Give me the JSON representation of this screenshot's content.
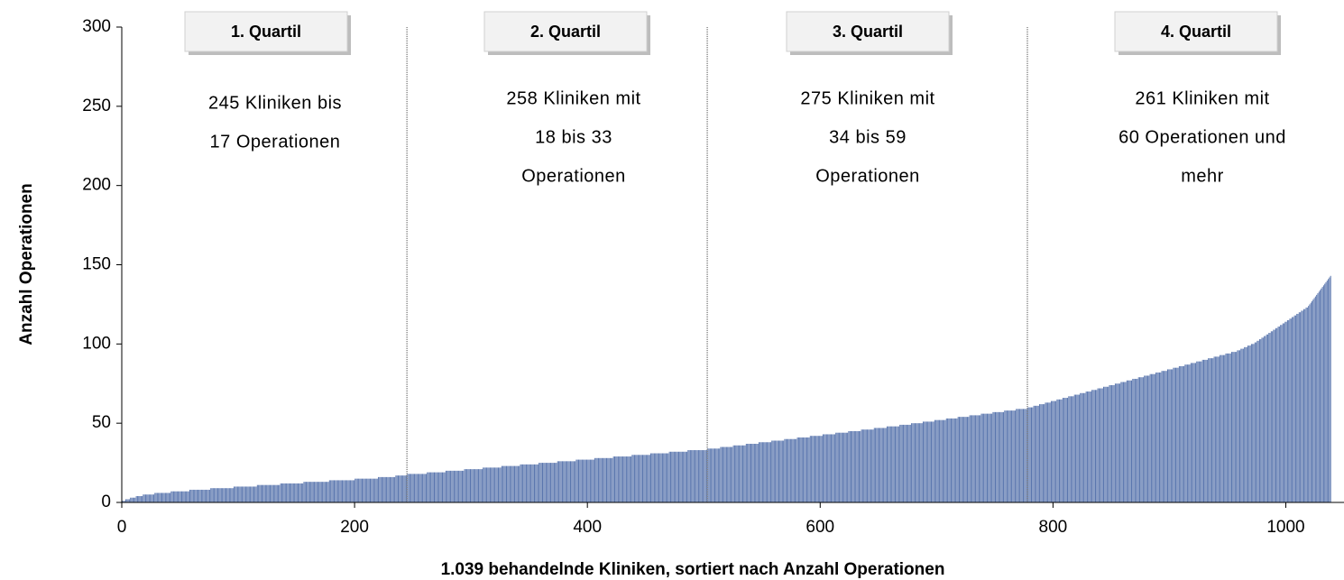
{
  "chart_data": {
    "type": "bar",
    "xlabel": "1.039 behandelnde Kliniken, sortiert nach Anzahl Operationen",
    "ylabel": "Anzahl Operationen",
    "color": "#5a76ae",
    "xlim": [
      0,
      1050
    ],
    "xticks": [
      0,
      200,
      400,
      600,
      800,
      1000
    ],
    "ylim": [
      0,
      300
    ],
    "yticks": [
      0,
      50,
      100,
      150,
      200,
      250,
      300
    ],
    "quartile_boundaries": [
      245,
      503,
      778
    ],
    "annotations": [
      {
        "label": "1. Quartil",
        "text": [
          "245 Kliniken bis",
          "17 Operationen"
        ]
      },
      {
        "label": "2. Quartil",
        "text": [
          "258 Kliniken mit",
          "18 bis 33",
          "Operationen"
        ]
      },
      {
        "label": "3. Quartil",
        "text": [
          "275 Kliniken mit",
          "34 bis 59",
          "Operationen"
        ]
      },
      {
        "label": "4. Quartil",
        "text": [
          "261 Kliniken mit",
          "60 Operationen und",
          "mehr"
        ]
      }
    ],
    "values": [
      1,
      1,
      1,
      2,
      2,
      2,
      2,
      3,
      3,
      3,
      3,
      3,
      4,
      4,
      4,
      4,
      4,
      4,
      5,
      5,
      5,
      5,
      5,
      5,
      5,
      5,
      5,
      5,
      6,
      6,
      6,
      6,
      6,
      6,
      6,
      6,
      6,
      6,
      6,
      6,
      6,
      6,
      7,
      7,
      7,
      7,
      7,
      7,
      7,
      7,
      7,
      7,
      7,
      7,
      7,
      7,
      7,
      7,
      8,
      8,
      8,
      8,
      8,
      8,
      8,
      8,
      8,
      8,
      8,
      8,
      8,
      8,
      8,
      8,
      8,
      8,
      9,
      9,
      9,
      9,
      9,
      9,
      9,
      9,
      9,
      9,
      9,
      9,
      9,
      9,
      9,
      9,
      9,
      9,
      9,
      9,
      10,
      10,
      10,
      10,
      10,
      10,
      10,
      10,
      10,
      10,
      10,
      10,
      10,
      10,
      10,
      10,
      10,
      10,
      10,
      10,
      11,
      11,
      11,
      11,
      11,
      11,
      11,
      11,
      11,
      11,
      11,
      11,
      11,
      11,
      11,
      11,
      11,
      11,
      11,
      11,
      12,
      12,
      12,
      12,
      12,
      12,
      12,
      12,
      12,
      12,
      12,
      12,
      12,
      12,
      12,
      12,
      12,
      12,
      12,
      12,
      13,
      13,
      13,
      13,
      13,
      13,
      13,
      13,
      13,
      13,
      13,
      13,
      13,
      13,
      13,
      13,
      13,
      13,
      13,
      13,
      13,
      13,
      14,
      14,
      14,
      14,
      14,
      14,
      14,
      14,
      14,
      14,
      14,
      14,
      14,
      14,
      14,
      14,
      14,
      14,
      14,
      14,
      14,
      14,
      15,
      15,
      15,
      15,
      15,
      15,
      15,
      15,
      15,
      15,
      15,
      15,
      15,
      15,
      15,
      15,
      15,
      15,
      15,
      15,
      16,
      16,
      16,
      16,
      16,
      16,
      16,
      16,
      16,
      16,
      16,
      16,
      16,
      16,
      16,
      17,
      17,
      17,
      17,
      17,
      17,
      17,
      17,
      17,
      17,
      18,
      18,
      18,
      18,
      18,
      18,
      18,
      18,
      18,
      18,
      18,
      18,
      18,
      18,
      18,
      18,
      18,
      19,
      19,
      19,
      19,
      19,
      19,
      19,
      19,
      19,
      19,
      19,
      19,
      19,
      19,
      19,
      19,
      20,
      20,
      20,
      20,
      20,
      20,
      20,
      20,
      20,
      20,
      20,
      20,
      20,
      20,
      20,
      20,
      21,
      21,
      21,
      21,
      21,
      21,
      21,
      21,
      21,
      21,
      21,
      21,
      21,
      21,
      21,
      21,
      22,
      22,
      22,
      22,
      22,
      22,
      22,
      22,
      22,
      22,
      22,
      22,
      22,
      22,
      22,
      22,
      23,
      23,
      23,
      23,
      23,
      23,
      23,
      23,
      23,
      23,
      23,
      23,
      23,
      23,
      23,
      23,
      24,
      24,
      24,
      24,
      24,
      24,
      24,
      24,
      24,
      24,
      24,
      24,
      24,
      24,
      24,
      24,
      25,
      25,
      25,
      25,
      25,
      25,
      25,
      25,
      25,
      25,
      25,
      25,
      25,
      25,
      25,
      25,
      26,
      26,
      26,
      26,
      26,
      26,
      26,
      26,
      26,
      26,
      26,
      26,
      26,
      26,
      26,
      26,
      27,
      27,
      27,
      27,
      27,
      27,
      27,
      27,
      27,
      27,
      27,
      27,
      27,
      27,
      27,
      27,
      28,
      28,
      28,
      28,
      28,
      28,
      28,
      28,
      28,
      28,
      28,
      28,
      28,
      28,
      28,
      28,
      29,
      29,
      29,
      29,
      29,
      29,
      29,
      29,
      29,
      29,
      29,
      29,
      29,
      29,
      29,
      29,
      30,
      30,
      30,
      30,
      30,
      30,
      30,
      30,
      30,
      30,
      30,
      30,
      30,
      30,
      30,
      30,
      31,
      31,
      31,
      31,
      31,
      31,
      31,
      31,
      31,
      31,
      31,
      31,
      31,
      31,
      31,
      31,
      32,
      32,
      32,
      32,
      32,
      32,
      32,
      32,
      32,
      32,
      32,
      32,
      32,
      32,
      32,
      32,
      33,
      33,
      33,
      33,
      33,
      33,
      33,
      33,
      33,
      33,
      33,
      33,
      33,
      33,
      33,
      33,
      33,
      34,
      34,
      34,
      34,
      34,
      34,
      34,
      34,
      34,
      34,
      34,
      35,
      35,
      35,
      35,
      35,
      35,
      35,
      35,
      35,
      35,
      35,
      36,
      36,
      36,
      36,
      36,
      36,
      36,
      36,
      36,
      36,
      36,
      37,
      37,
      37,
      37,
      37,
      37,
      37,
      37,
      37,
      37,
      37,
      38,
      38,
      38,
      38,
      38,
      38,
      38,
      38,
      38,
      38,
      38,
      39,
      39,
      39,
      39,
      39,
      39,
      39,
      39,
      39,
      39,
      39,
      40,
      40,
      40,
      40,
      40,
      40,
      40,
      40,
      40,
      40,
      40,
      41,
      41,
      41,
      41,
      41,
      41,
      41,
      41,
      41,
      41,
      41,
      42,
      42,
      42,
      42,
      42,
      42,
      42,
      42,
      42,
      42,
      42,
      43,
      43,
      43,
      43,
      43,
      43,
      43,
      43,
      43,
      43,
      43,
      44,
      44,
      44,
      44,
      44,
      44,
      44,
      44,
      44,
      44,
      44,
      45,
      45,
      45,
      45,
      45,
      45,
      45,
      45,
      45,
      45,
      45,
      46,
      46,
      46,
      46,
      46,
      46,
      46,
      46,
      46,
      46,
      46,
      47,
      47,
      47,
      47,
      47,
      47,
      47,
      47,
      47,
      47,
      47,
      48,
      48,
      48,
      48,
      48,
      48,
      48,
      48,
      48,
      48,
      48,
      49,
      49,
      49,
      49,
      49,
      49,
      49,
      49,
      49,
      49,
      50,
      50,
      50,
      50,
      50,
      50,
      50,
      50,
      50,
      50,
      51,
      51,
      51,
      51,
      51,
      51,
      51,
      51,
      51,
      51,
      52,
      52,
      52,
      52,
      52,
      52,
      52,
      52,
      52,
      52,
      53,
      53,
      53,
      53,
      53,
      53,
      53,
      53,
      53,
      53,
      54,
      54,
      54,
      54,
      54,
      54,
      54,
      54,
      54,
      54,
      55,
      55,
      55,
      55,
      55,
      55,
      55,
      55,
      55,
      55,
      56,
      56,
      56,
      56,
      56,
      56,
      56,
      56,
      56,
      56,
      57,
      57,
      57,
      57,
      57,
      57,
      57,
      57,
      57,
      57,
      58,
      58,
      58,
      58,
      58,
      58,
      58,
      58,
      58,
      58,
      59,
      59,
      59,
      59,
      59,
      59,
      59,
      59,
      59,
      59,
      60,
      60,
      60,
      60,
      60,
      61,
      61,
      61,
      61,
      61,
      62,
      62,
      62,
      62,
      62,
      63,
      63,
      63,
      63,
      63,
      64,
      64,
      64,
      64,
      64,
      65,
      65,
      65,
      65,
      65,
      66,
      66,
      66,
      66,
      66,
      67,
      67,
      67,
      67,
      67,
      68,
      68,
      68,
      68,
      68,
      69,
      69,
      69,
      69,
      69,
      70,
      70,
      70,
      70,
      70,
      71,
      71,
      71,
      71,
      71,
      72,
      72,
      72,
      72,
      72,
      73,
      73,
      73,
      73,
      73,
      74,
      74,
      74,
      74,
      74,
      75,
      75,
      75,
      75,
      75,
      76,
      76,
      76,
      76,
      76,
      77,
      77,
      77,
      77,
      77,
      78,
      78,
      78,
      78,
      78,
      79,
      79,
      79,
      79,
      79,
      80,
      80,
      80,
      80,
      80,
      81,
      81,
      81,
      81,
      81,
      82,
      82,
      82,
      82,
      82,
      83,
      83,
      83,
      83,
      83,
      84,
      84,
      84,
      84,
      84,
      85,
      85,
      85,
      85,
      85,
      86,
      86,
      86,
      86,
      86,
      87,
      87,
      87,
      87,
      87,
      88,
      88,
      88,
      88,
      88,
      89,
      89,
      89,
      89,
      89,
      90,
      90,
      90,
      90,
      90,
      91,
      91,
      91,
      91,
      91,
      92,
      92,
      92,
      92,
      92,
      93,
      93,
      93,
      93,
      93,
      94,
      94,
      94,
      94,
      94,
      95,
      95,
      95,
      95,
      95,
      96,
      96,
      96,
      97,
      97,
      97,
      98,
      98,
      98,
      99,
      99,
      99,
      100,
      100,
      100,
      101,
      101,
      102,
      102,
      103,
      103,
      104,
      104,
      105,
      105,
      106,
      106,
      107,
      107,
      108,
      108,
      109,
      109,
      110,
      110,
      111,
      111,
      112,
      112,
      113,
      113,
      114,
      114,
      115,
      115,
      116,
      116,
      117,
      117,
      118,
      118,
      119,
      119,
      120,
      120,
      121,
      121,
      122,
      122,
      123,
      123,
      124,
      125,
      126,
      127,
      128,
      129,
      130,
      131,
      132,
      133,
      134,
      135,
      136,
      137,
      138,
      139,
      140,
      141,
      142,
      143
    ]
  }
}
